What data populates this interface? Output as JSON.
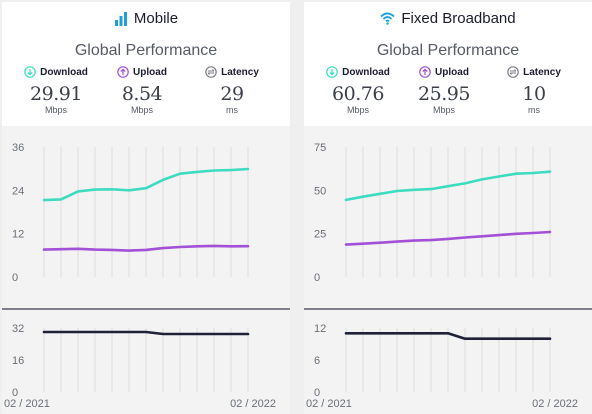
{
  "panels": [
    {
      "id": "mobile",
      "title": "Mobile",
      "icon": "signal-bars-icon",
      "subtitle": "Global Performance",
      "metrics": [
        {
          "label": "Download",
          "icon": "download-arrow-icon",
          "value": "29.91",
          "unit": "Mbps",
          "color": "#3ddbc0"
        },
        {
          "label": "Upload",
          "icon": "upload-arrow-icon",
          "value": "8.54",
          "unit": "Mbps",
          "color": "#a251d7"
        },
        {
          "label": "Latency",
          "icon": "latency-gauge-icon",
          "value": "29",
          "unit": "ms",
          "color": "#7d7d86"
        }
      ]
    },
    {
      "id": "fixed",
      "title": "Fixed Broadband",
      "icon": "wifi-icon",
      "subtitle": "Global Performance",
      "metrics": [
        {
          "label": "Download",
          "icon": "download-arrow-icon",
          "value": "60.76",
          "unit": "Mbps",
          "color": "#3ddbc0"
        },
        {
          "label": "Upload",
          "icon": "upload-arrow-icon",
          "value": "25.95",
          "unit": "Mbps",
          "color": "#a251d7"
        },
        {
          "label": "Latency",
          "icon": "latency-gauge-icon",
          "value": "10",
          "unit": "ms",
          "color": "#7d7d86"
        }
      ]
    }
  ],
  "colors": {
    "download": "#3ddbc0",
    "upload": "#a251d7",
    "latency": "#1f2236",
    "title_icon": "#1c9fd9"
  },
  "chart_data": [
    {
      "type": "line",
      "panel": "mobile",
      "x": [
        "02 / 2021",
        "03 / 2021",
        "04 / 2021",
        "05 / 2021",
        "06 / 2021",
        "07 / 2021",
        "08 / 2021",
        "09 / 2021",
        "10 / 2021",
        "11 / 2021",
        "12 / 2021",
        "01 / 2022",
        "02 / 2022"
      ],
      "x_tick_labels": [
        "02 / 2021",
        "02 / 2022"
      ],
      "speed": {
        "yticks": [
          0,
          12,
          24,
          36
        ],
        "ylim": [
          0,
          36
        ],
        "series": [
          {
            "key": "download",
            "values": [
              21.3,
              21.5,
              23.7,
              24.2,
              24.3,
              24.0,
              24.6,
              26.9,
              28.6,
              29.1,
              29.5,
              29.6,
              29.91
            ]
          },
          {
            "key": "upload",
            "values": [
              7.6,
              7.7,
              7.8,
              7.6,
              7.5,
              7.3,
              7.5,
              8.0,
              8.3,
              8.5,
              8.6,
              8.5,
              8.54
            ]
          }
        ]
      },
      "latency": {
        "yticks": [
          0,
          16,
          32
        ],
        "ylim": [
          0,
          32
        ],
        "series": [
          {
            "key": "latency",
            "values": [
              30,
              30,
              30,
              30,
              30,
              30,
              30,
              29,
              29,
              29,
              29,
              29,
              29
            ]
          }
        ]
      },
      "grid": "vertical"
    },
    {
      "type": "line",
      "panel": "fixed",
      "x": [
        "02 / 2021",
        "03 / 2021",
        "04 / 2021",
        "05 / 2021",
        "06 / 2021",
        "07 / 2021",
        "08 / 2021",
        "09 / 2021",
        "10 / 2021",
        "11 / 2021",
        "12 / 2021",
        "01 / 2022",
        "02 / 2022"
      ],
      "x_tick_labels": [
        "02 / 2021",
        "02 / 2022"
      ],
      "speed": {
        "yticks": [
          0,
          25,
          50,
          75
        ],
        "ylim": [
          0,
          75
        ],
        "series": [
          {
            "key": "download",
            "values": [
              44.5,
              46.3,
              48.0,
              49.6,
              50.3,
              50.7,
              52.4,
              54.0,
              56.3,
              58.0,
              59.6,
              60.0,
              60.76
            ]
          },
          {
            "key": "upload",
            "values": [
              18.7,
              19.2,
              19.8,
              20.4,
              21.0,
              21.3,
              22.0,
              22.8,
              23.5,
              24.2,
              24.9,
              25.4,
              25.95
            ]
          }
        ]
      },
      "latency": {
        "yticks": [
          0,
          6,
          12
        ],
        "ylim": [
          0,
          12
        ],
        "series": [
          {
            "key": "latency",
            "values": [
              11,
              11,
              11,
              11,
              11,
              11,
              11,
              10,
              10,
              10,
              10,
              10,
              10
            ]
          }
        ]
      },
      "grid": "vertical"
    }
  ]
}
